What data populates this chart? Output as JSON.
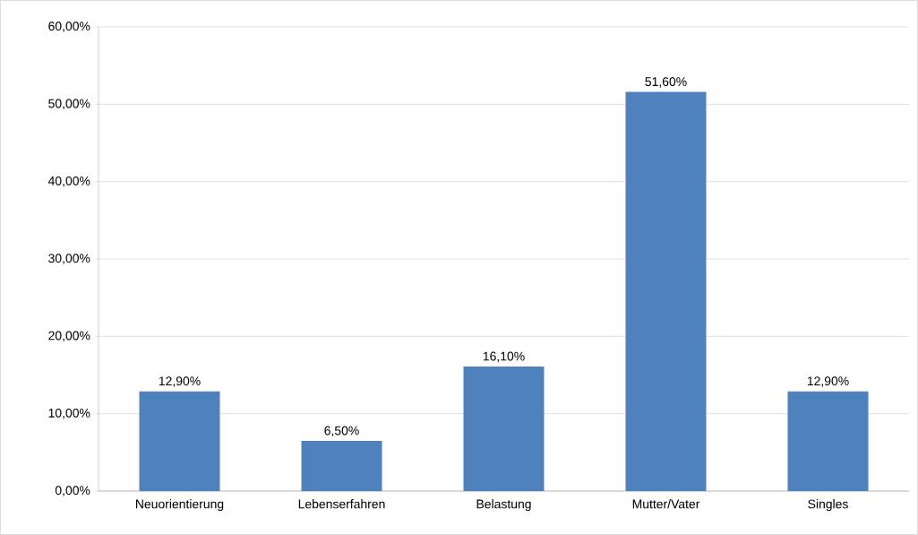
{
  "chart_data": {
    "type": "bar",
    "categories": [
      "Neuorientierung",
      "Lebenserfahren",
      "Belastung",
      "Mutter/Vater",
      "Singles"
    ],
    "values": [
      12.9,
      6.5,
      16.1,
      51.6,
      12.9
    ],
    "value_labels": [
      "12,90%",
      "6,50%",
      "16,10%",
      "51,60%",
      "12,90%"
    ],
    "color": "#4f81bd",
    "ylim": [
      0,
      60
    ],
    "yticks": [
      {
        "value": 0,
        "label": "0,00%"
      },
      {
        "value": 10,
        "label": "10,00%"
      },
      {
        "value": 20,
        "label": "20,00%"
      },
      {
        "value": 30,
        "label": "30,00%"
      },
      {
        "value": 40,
        "label": "40,00%"
      },
      {
        "value": 50,
        "label": "50,00%"
      },
      {
        "value": 60,
        "label": "60,00%"
      }
    ],
    "grid": "y"
  }
}
